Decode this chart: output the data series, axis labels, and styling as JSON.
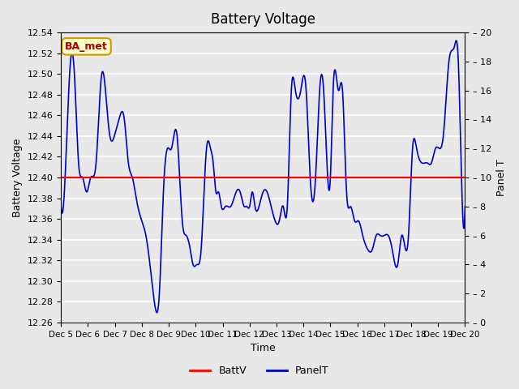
{
  "title": "Battery Voltage",
  "xlabel": "Time",
  "ylabel_left": "Battery Voltage",
  "ylabel_right": "Panel T",
  "xlim": [
    0,
    15
  ],
  "ylim_left": [
    12.26,
    12.54
  ],
  "ylim_right": [
    0,
    20
  ],
  "battv_value": 12.4,
  "annotation_text": "BA_met",
  "annotation_bg": "#ffffcc",
  "annotation_border": "#cc9900",
  "annotation_text_color": "#aa0000",
  "bg_color": "#e8e8e8",
  "plot_bg_color": "#e8e8e8",
  "grid_color": "white",
  "xtick_labels": [
    "Dec 5",
    "Dec 6",
    "Dec 7",
    "Dec 8",
    "Dec 9",
    "Dec 10",
    "Dec 11",
    "Dec 12",
    "Dec 13",
    "Dec 14",
    "Dec 15",
    "Dec 16",
    "Dec 17",
    "Dec 18",
    "Dec 19",
    "Dec 20"
  ],
  "xtick_positions": [
    0,
    1,
    2,
    3,
    4,
    5,
    6,
    7,
    8,
    9,
    10,
    11,
    12,
    13,
    14,
    15
  ],
  "ytick_left": [
    12.26,
    12.28,
    12.3,
    12.32,
    12.34,
    12.36,
    12.38,
    12.4,
    12.42,
    12.44,
    12.46,
    12.48,
    12.5,
    12.52,
    12.54
  ],
  "ytick_right": [
    0,
    2,
    4,
    6,
    8,
    10,
    12,
    14,
    16,
    18,
    20
  ],
  "panel_color": "#0000cc",
  "battv_color": "#ff0000",
  "legend_battv": "BattV",
  "legend_panel": "PanelT",
  "panel_keypoints_x": [
    0,
    0.15,
    0.35,
    0.5,
    0.65,
    0.8,
    0.95,
    1.1,
    1.3,
    1.5,
    1.65,
    1.8,
    2.0,
    2.15,
    2.35,
    2.5,
    2.65,
    2.75,
    2.85,
    3.0,
    3.15,
    3.3,
    3.5,
    3.65,
    3.8,
    3.95,
    4.1,
    4.3,
    4.5,
    4.65,
    4.8,
    4.9,
    5.05,
    5.2,
    5.4,
    5.55,
    5.65,
    5.75,
    5.85,
    5.95,
    6.1,
    6.3,
    6.5,
    6.65,
    6.8,
    6.9,
    7.0,
    7.1,
    7.2,
    7.35,
    7.5,
    7.65,
    7.8,
    7.95,
    8.1,
    8.25,
    8.4,
    8.55,
    8.7,
    8.9,
    9.0,
    9.1,
    9.25,
    9.45,
    9.6,
    9.75,
    9.9,
    10.0,
    10.1,
    10.3,
    10.45,
    10.6,
    10.75,
    10.9,
    11.05,
    11.2,
    11.4,
    11.55,
    11.7,
    11.85,
    12.0,
    12.15,
    12.3,
    12.5,
    12.65,
    12.8,
    12.9,
    13.05,
    13.2,
    13.4,
    13.6,
    13.75,
    13.9,
    14.05,
    14.2,
    14.4,
    14.6,
    14.75,
    14.9,
    15.0
  ],
  "panel_keypoints_y": [
    8,
    10,
    18,
    17,
    11,
    10,
    9,
    10,
    11,
    17,
    16,
    13,
    13,
    14,
    14,
    11,
    10,
    9,
    8,
    7,
    6,
    4,
    1,
    2,
    9,
    12,
    12,
    13,
    7,
    6,
    5,
    4,
    4,
    5,
    12,
    12,
    11,
    9,
    9,
    8,
    8,
    8,
    9,
    9,
    8,
    8,
    8,
    9,
    8,
    8,
    9,
    9,
    8,
    7,
    7,
    8,
    8,
    16,
    16,
    16,
    17,
    16,
    10,
    10,
    16,
    16,
    10,
    10,
    16,
    16,
    16,
    9,
    8,
    7,
    7,
    6,
    5,
    5,
    6,
    6,
    6,
    6,
    5,
    4,
    6,
    5,
    6,
    12,
    12,
    11,
    11,
    11,
    12,
    12,
    13,
    18,
    19,
    18,
    8,
    8
  ]
}
